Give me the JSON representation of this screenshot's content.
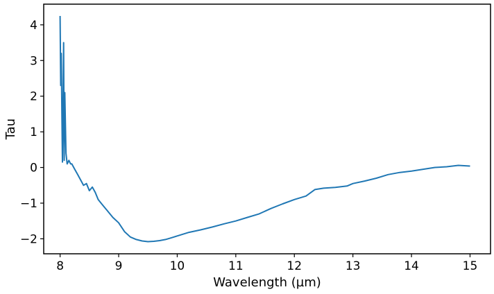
{
  "chart_data": {
    "type": "line",
    "title": "",
    "xlabel": "Wavelength (µm)",
    "ylabel": "Tau",
    "xlim": [
      7.72,
      15.35
    ],
    "ylim": [
      -2.42,
      4.58
    ],
    "x_ticks": [
      8,
      9,
      10,
      11,
      12,
      13,
      14,
      15
    ],
    "y_ticks": [
      -2,
      -1,
      0,
      1,
      2,
      3,
      4
    ],
    "x_tick_labels": [
      "8",
      "9",
      "10",
      "11",
      "12",
      "13",
      "14",
      "15"
    ],
    "y_tick_labels": [
      "−2",
      "−1",
      "0",
      "1",
      "2",
      "3",
      "4"
    ],
    "grid": false,
    "series": [
      {
        "color": "#1f77b4",
        "x": [
          8.0,
          8.01,
          8.02,
          8.03,
          8.04,
          8.05,
          8.06,
          8.07,
          8.08,
          8.1,
          8.12,
          8.15,
          8.18,
          8.2,
          8.25,
          8.3,
          8.35,
          8.4,
          8.45,
          8.5,
          8.55,
          8.6,
          8.65,
          8.7,
          8.75,
          8.8,
          8.85,
          8.9,
          9.0,
          9.1,
          9.2,
          9.3,
          9.4,
          9.5,
          9.6,
          9.7,
          9.8,
          9.9,
          10.0,
          10.2,
          10.4,
          10.6,
          10.8,
          11.0,
          11.2,
          11.4,
          11.6,
          11.8,
          12.0,
          12.2,
          12.35,
          12.5,
          12.7,
          12.9,
          13.0,
          13.2,
          13.4,
          13.6,
          13.8,
          14.0,
          14.2,
          14.4,
          14.6,
          14.8,
          15.0
        ],
        "y": [
          4.25,
          2.3,
          3.2,
          1.5,
          0.15,
          1.8,
          3.5,
          0.2,
          2.1,
          0.4,
          0.1,
          0.2,
          0.1,
          0.1,
          -0.05,
          -0.2,
          -0.35,
          -0.5,
          -0.45,
          -0.65,
          -0.55,
          -0.7,
          -0.9,
          -1.0,
          -1.1,
          -1.2,
          -1.3,
          -1.4,
          -1.55,
          -1.8,
          -1.95,
          -2.02,
          -2.06,
          -2.08,
          -2.07,
          -2.05,
          -2.02,
          -1.97,
          -1.92,
          -1.82,
          -1.75,
          -1.67,
          -1.58,
          -1.5,
          -1.4,
          -1.3,
          -1.15,
          -1.02,
          -0.9,
          -0.8,
          -0.62,
          -0.58,
          -0.56,
          -0.52,
          -0.45,
          -0.38,
          -0.3,
          -0.2,
          -0.14,
          -0.1,
          -0.05,
          0.0,
          0.02,
          0.06,
          0.04
        ]
      }
    ]
  }
}
